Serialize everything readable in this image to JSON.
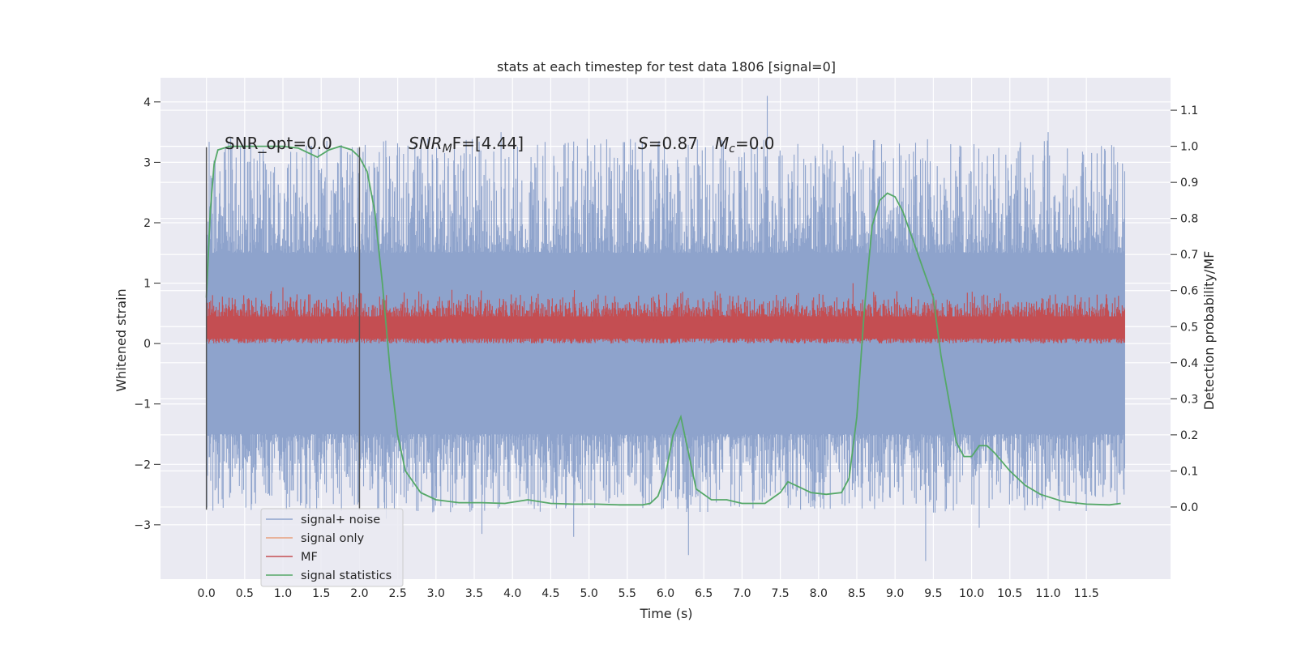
{
  "chart_data": {
    "type": "line",
    "title": "stats at each timestep for test data 1806 [signal=0]",
    "xlabel": "Time (s)",
    "ylabel": "Whitened strain",
    "y2label": "Detection probability/MF",
    "xlim": [
      -0.6,
      12.6
    ],
    "ylim": [
      -3.9,
      4.4
    ],
    "y2lim": [
      -0.2,
      1.19
    ],
    "x_ticks": [
      0.0,
      0.5,
      1.0,
      1.5,
      2.0,
      2.5,
      3.0,
      3.5,
      4.0,
      4.5,
      5.0,
      5.5,
      6.0,
      6.5,
      7.0,
      7.5,
      8.0,
      8.5,
      9.0,
      9.5,
      10.0,
      10.5,
      11.0,
      11.5
    ],
    "x_tick_labels": [
      "0.0",
      "0.5",
      "1.0",
      "1.5",
      "2.0",
      "2.5",
      "3.0",
      "3.5",
      "4.0",
      "4.5",
      "5.0",
      "5.5",
      "6.0",
      "6.5",
      "7.0",
      "7.5",
      "8.0",
      "8.5",
      "9.0",
      "9.5",
      "10.0",
      "10.5",
      "11.0",
      "11.5"
    ],
    "y_ticks": [
      4,
      3,
      2,
      1,
      0,
      -1,
      -2,
      -3
    ],
    "y_tick_labels": [
      "4",
      "3",
      "2",
      "1",
      "0",
      "−1",
      "−2",
      "−3"
    ],
    "y2_ticks": [
      1.1,
      1.0,
      0.9,
      0.8,
      0.7,
      0.6,
      0.5,
      0.4,
      0.3,
      0.2,
      0.1,
      0.0
    ],
    "y2_tick_labels": [
      "1.1",
      "1.0",
      "0.9",
      "0.8",
      "0.7",
      "0.6",
      "0.5",
      "0.4",
      "0.3",
      "0.2",
      "0.1",
      "0.0"
    ],
    "grid": true,
    "legend_position": "lower-left",
    "annotations": {
      "snr_opt": "SNR_opt=0.0",
      "snr_mf_name": "SNR",
      "snr_mf_sub": "M",
      "snr_mf_rest": "F=[4.44]",
      "s_name": "S",
      "s_value": "=0.87",
      "mc_name": "M",
      "mc_sub": "c",
      "mc_value": "=0.0"
    },
    "vertical_markers": [
      {
        "x": 0.0,
        "y_range": [
          -2.75,
          3.25
        ]
      },
      {
        "x": 2.0,
        "y_range": [
          -2.75,
          3.25
        ]
      }
    ],
    "series": [
      {
        "name": "signal+ noise",
        "axis": "left",
        "color": "#8ea3cc",
        "x_range": [
          0.0,
          12.0
        ],
        "typical_range": [
          -1.5,
          1.5
        ],
        "extremes": [
          [
            1.35,
            -2.8
          ],
          [
            2.35,
            -2.9
          ],
          [
            3.6,
            -3.15
          ],
          [
            4.8,
            -3.2
          ],
          [
            6.3,
            -3.5
          ],
          [
            9.4,
            -3.6
          ],
          [
            10.1,
            -3.05
          ],
          [
            7.33,
            4.1
          ],
          [
            3.85,
            3.5
          ],
          [
            11.0,
            3.5
          ],
          [
            10.95,
            3.35
          ]
        ]
      },
      {
        "name": "signal only",
        "axis": "left",
        "color": "#e8a07c",
        "x": [],
        "y": []
      },
      {
        "name": "MF",
        "axis": "left",
        "color": "#c44e52",
        "x_range": [
          0.0,
          12.0
        ],
        "typical_range": [
          0.0,
          0.6
        ],
        "extremes": [
          [
            1.0,
            0.93
          ],
          [
            8.45,
            1.0
          ]
        ]
      },
      {
        "name": "signal statistics",
        "axis": "right",
        "color": "#55a868",
        "x": [
          0.0,
          0.05,
          0.1,
          0.15,
          0.3,
          0.6,
          1.0,
          1.2,
          1.35,
          1.45,
          1.6,
          1.75,
          1.9,
          2.0,
          2.1,
          2.2,
          2.3,
          2.4,
          2.5,
          2.6,
          2.8,
          3.0,
          3.3,
          3.6,
          3.9,
          4.2,
          4.5,
          4.8,
          5.1,
          5.4,
          5.7,
          5.8,
          5.9,
          6.0,
          6.1,
          6.2,
          6.3,
          6.4,
          6.6,
          6.8,
          7.0,
          7.3,
          7.5,
          7.6,
          7.7,
          7.9,
          8.1,
          8.3,
          8.4,
          8.5,
          8.6,
          8.7,
          8.8,
          8.9,
          9.0,
          9.1,
          9.2,
          9.3,
          9.4,
          9.5,
          9.55,
          9.6,
          9.7,
          9.8,
          9.9,
          10.0,
          10.1,
          10.2,
          10.3,
          10.5,
          10.7,
          10.9,
          11.2,
          11.5,
          11.8,
          11.95
        ],
        "y": [
          0.58,
          0.82,
          0.95,
          0.99,
          1.0,
          1.0,
          1.0,
          0.995,
          0.98,
          0.97,
          0.99,
          1.0,
          0.99,
          0.97,
          0.93,
          0.82,
          0.62,
          0.38,
          0.2,
          0.1,
          0.04,
          0.02,
          0.012,
          0.012,
          0.01,
          0.02,
          0.01,
          0.008,
          0.008,
          0.006,
          0.006,
          0.01,
          0.03,
          0.09,
          0.2,
          0.25,
          0.15,
          0.05,
          0.02,
          0.02,
          0.01,
          0.01,
          0.04,
          0.07,
          0.06,
          0.04,
          0.035,
          0.04,
          0.08,
          0.25,
          0.55,
          0.78,
          0.85,
          0.87,
          0.86,
          0.82,
          0.76,
          0.7,
          0.64,
          0.58,
          0.5,
          0.42,
          0.3,
          0.18,
          0.14,
          0.14,
          0.17,
          0.17,
          0.15,
          0.1,
          0.06,
          0.035,
          0.015,
          0.008,
          0.006,
          0.01
        ]
      }
    ]
  }
}
